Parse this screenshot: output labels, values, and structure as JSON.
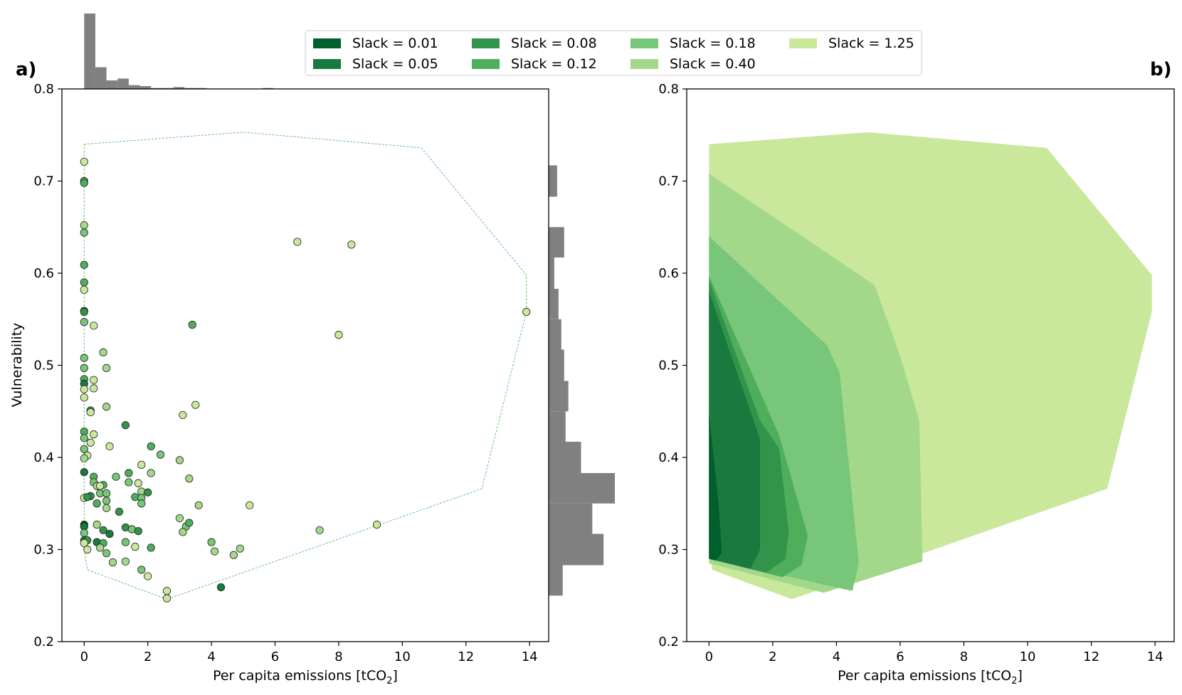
{
  "chart_data": [
    {
      "panel": "a)",
      "type": "scatter",
      "xlabel": "Per capita emissions [tCO",
      "xlabel_sub": "2",
      "xlabel_end": "]",
      "ylabel": "Vulnerability",
      "xlim": [
        -0.7,
        14.6
      ],
      "ylim": [
        0.2,
        0.8
      ],
      "xticks": [
        0,
        2,
        4,
        6,
        8,
        10,
        12,
        14
      ],
      "yticks": [
        0.2,
        0.3,
        0.4,
        0.5,
        0.6,
        0.7,
        0.8
      ],
      "slack_series": [
        "0.01",
        "0.05",
        "0.08",
        "0.12",
        "0.18",
        "0.40",
        "1.25"
      ],
      "points": [
        {
          "x": 0.0,
          "y": 0.721,
          "s": 6
        },
        {
          "x": 0.0,
          "y": 0.7,
          "s": 3
        },
        {
          "x": 0.0,
          "y": 0.698,
          "s": 3
        },
        {
          "x": 0.0,
          "y": 0.652,
          "s": 5
        },
        {
          "x": 0.0,
          "y": 0.644,
          "s": 4
        },
        {
          "x": 0.0,
          "y": 0.609,
          "s": 3
        },
        {
          "x": 0.0,
          "y": 0.59,
          "s": 3
        },
        {
          "x": 0.0,
          "y": 0.582,
          "s": 6
        },
        {
          "x": 0.0,
          "y": 0.559,
          "s": 1
        },
        {
          "x": 0.0,
          "y": 0.558,
          "s": 2
        },
        {
          "x": 0.0,
          "y": 0.547,
          "s": 4
        },
        {
          "x": 0.3,
          "y": 0.543,
          "s": 6
        },
        {
          "x": 0.0,
          "y": 0.508,
          "s": 4
        },
        {
          "x": 0.0,
          "y": 0.497,
          "s": 4
        },
        {
          "x": 0.0,
          "y": 0.485,
          "s": 3
        },
        {
          "x": 0.0,
          "y": 0.48,
          "s": 1
        },
        {
          "x": 0.3,
          "y": 0.484,
          "s": 6
        },
        {
          "x": 0.0,
          "y": 0.474,
          "s": 6
        },
        {
          "x": 0.3,
          "y": 0.475,
          "s": 6
        },
        {
          "x": 0.0,
          "y": 0.465,
          "s": 6
        },
        {
          "x": 0.0,
          "y": 0.428,
          "s": 3
        },
        {
          "x": 0.2,
          "y": 0.451,
          "s": 2
        },
        {
          "x": 0.2,
          "y": 0.449,
          "s": 6
        },
        {
          "x": 0.3,
          "y": 0.425,
          "s": 6
        },
        {
          "x": 0.0,
          "y": 0.421,
          "s": 4
        },
        {
          "x": 0.2,
          "y": 0.416,
          "s": 6
        },
        {
          "x": 0.0,
          "y": 0.409,
          "s": 4
        },
        {
          "x": 0.1,
          "y": 0.402,
          "s": 6
        },
        {
          "x": 0.0,
          "y": 0.399,
          "s": 5
        },
        {
          "x": 0.0,
          "y": 0.384,
          "s": 1
        },
        {
          "x": 0.3,
          "y": 0.379,
          "s": 3
        },
        {
          "x": 0.3,
          "y": 0.373,
          "s": 4
        },
        {
          "x": 0.4,
          "y": 0.369,
          "s": 5
        },
        {
          "x": 0.6,
          "y": 0.37,
          "s": 3
        },
        {
          "x": 0.5,
          "y": 0.369,
          "s": 6
        },
        {
          "x": 0.0,
          "y": 0.356,
          "s": 6
        },
        {
          "x": 0.2,
          "y": 0.358,
          "s": 2
        },
        {
          "x": 0.1,
          "y": 0.357,
          "s": 2
        },
        {
          "x": 0.5,
          "y": 0.361,
          "s": 4
        },
        {
          "x": 0.7,
          "y": 0.361,
          "s": 4
        },
        {
          "x": 0.7,
          "y": 0.353,
          "s": 4
        },
        {
          "x": 0.4,
          "y": 0.35,
          "s": 3
        },
        {
          "x": 0.7,
          "y": 0.345,
          "s": 5
        },
        {
          "x": 0.0,
          "y": 0.327,
          "s": 0
        },
        {
          "x": 0.0,
          "y": 0.325,
          "s": 1
        },
        {
          "x": 0.4,
          "y": 0.327,
          "s": 5
        },
        {
          "x": 0.6,
          "y": 0.321,
          "s": 2
        },
        {
          "x": 0.8,
          "y": 0.317,
          "s": 1
        },
        {
          "x": 0.0,
          "y": 0.318,
          "s": 4
        },
        {
          "x": 0.0,
          "y": 0.31,
          "s": 1
        },
        {
          "x": 0.1,
          "y": 0.31,
          "s": 2
        },
        {
          "x": 0.4,
          "y": 0.308,
          "s": 1
        },
        {
          "x": 0.6,
          "y": 0.307,
          "s": 3
        },
        {
          "x": 0.0,
          "y": 0.307,
          "s": 6
        },
        {
          "x": 0.5,
          "y": 0.302,
          "s": 5
        },
        {
          "x": 0.1,
          "y": 0.3,
          "s": 6
        },
        {
          "x": 0.7,
          "y": 0.296,
          "s": 4
        },
        {
          "x": 0.9,
          "y": 0.286,
          "s": 5
        },
        {
          "x": 1.0,
          "y": 0.379,
          "s": 4
        },
        {
          "x": 0.8,
          "y": 0.412,
          "s": 6
        },
        {
          "x": 0.7,
          "y": 0.455,
          "s": 5
        },
        {
          "x": 0.7,
          "y": 0.497,
          "s": 5
        },
        {
          "x": 0.6,
          "y": 0.514,
          "s": 5
        },
        {
          "x": 1.3,
          "y": 0.435,
          "s": 2
        },
        {
          "x": 1.4,
          "y": 0.383,
          "s": 3
        },
        {
          "x": 1.4,
          "y": 0.373,
          "s": 4
        },
        {
          "x": 1.7,
          "y": 0.372,
          "s": 6
        },
        {
          "x": 1.6,
          "y": 0.357,
          "s": 3
        },
        {
          "x": 1.8,
          "y": 0.363,
          "s": 5
        },
        {
          "x": 1.8,
          "y": 0.356,
          "s": 4
        },
        {
          "x": 1.8,
          "y": 0.35,
          "s": 4
        },
        {
          "x": 1.1,
          "y": 0.341,
          "s": 2
        },
        {
          "x": 1.3,
          "y": 0.324,
          "s": 2
        },
        {
          "x": 1.5,
          "y": 0.322,
          "s": 4
        },
        {
          "x": 1.7,
          "y": 0.32,
          "s": 2
        },
        {
          "x": 1.3,
          "y": 0.308,
          "s": 4
        },
        {
          "x": 1.6,
          "y": 0.303,
          "s": 6
        },
        {
          "x": 1.3,
          "y": 0.287,
          "s": 5
        },
        {
          "x": 1.8,
          "y": 0.278,
          "s": 4
        },
        {
          "x": 2.0,
          "y": 0.271,
          "s": 6
        },
        {
          "x": 1.8,
          "y": 0.392,
          "s": 6
        },
        {
          "x": 2.1,
          "y": 0.412,
          "s": 3
        },
        {
          "x": 2.1,
          "y": 0.383,
          "s": 5
        },
        {
          "x": 2.0,
          "y": 0.362,
          "s": 2
        },
        {
          "x": 2.1,
          "y": 0.302,
          "s": 3
        },
        {
          "x": 2.4,
          "y": 0.403,
          "s": 4
        },
        {
          "x": 3.0,
          "y": 0.397,
          "s": 5
        },
        {
          "x": 3.3,
          "y": 0.377,
          "s": 5
        },
        {
          "x": 3.0,
          "y": 0.334,
          "s": 5
        },
        {
          "x": 3.2,
          "y": 0.325,
          "s": 4
        },
        {
          "x": 3.3,
          "y": 0.329,
          "s": 3
        },
        {
          "x": 3.1,
          "y": 0.319,
          "s": 5
        },
        {
          "x": 3.6,
          "y": 0.348,
          "s": 5
        },
        {
          "x": 3.1,
          "y": 0.446,
          "s": 6
        },
        {
          "x": 3.5,
          "y": 0.457,
          "s": 6
        },
        {
          "x": 3.4,
          "y": 0.544,
          "s": 3
        },
        {
          "x": 2.6,
          "y": 0.255,
          "s": 6
        },
        {
          "x": 2.6,
          "y": 0.247,
          "s": 6
        },
        {
          "x": 4.0,
          "y": 0.308,
          "s": 4
        },
        {
          "x": 4.1,
          "y": 0.298,
          "s": 5
        },
        {
          "x": 4.3,
          "y": 0.259,
          "s": 1
        },
        {
          "x": 4.7,
          "y": 0.294,
          "s": 5
        },
        {
          "x": 4.9,
          "y": 0.301,
          "s": 5
        },
        {
          "x": 5.2,
          "y": 0.348,
          "s": 6
        },
        {
          "x": 6.7,
          "y": 0.634,
          "s": 6
        },
        {
          "x": 7.4,
          "y": 0.321,
          "s": 5
        },
        {
          "x": 8.0,
          "y": 0.533,
          "s": 6
        },
        {
          "x": 8.4,
          "y": 0.631,
          "s": 6
        },
        {
          "x": 9.2,
          "y": 0.327,
          "s": 6
        },
        {
          "x": 13.9,
          "y": 0.558,
          "s": 6
        }
      ],
      "hull": [
        [
          0.0,
          0.74
        ],
        [
          5.0,
          0.753
        ],
        [
          10.6,
          0.736
        ],
        [
          13.9,
          0.598
        ],
        [
          13.9,
          0.558
        ],
        [
          12.5,
          0.366
        ],
        [
          2.6,
          0.246
        ],
        [
          0.1,
          0.278
        ],
        [
          0.0,
          0.3
        ],
        [
          0.0,
          0.74
        ]
      ],
      "hist_x": {
        "range": [
          0,
          7
        ],
        "bins": 20,
        "counts": [
          80,
          23,
          9,
          11,
          4,
          3,
          1,
          1,
          2,
          1,
          1,
          0,
          0,
          0,
          0,
          0,
          1,
          0,
          0,
          0
        ]
      },
      "hist_y": {
        "edges": [
          0.25,
          0.283,
          0.317,
          0.35,
          0.383,
          0.417,
          0.45,
          0.483,
          0.517,
          0.55,
          0.583,
          0.617,
          0.65,
          0.683,
          0.717
        ],
        "counts": [
          10,
          39,
          31,
          47,
          23,
          12,
          14,
          11,
          9,
          7,
          4,
          11,
          0,
          6
        ]
      }
    },
    {
      "panel": "b)",
      "type": "area",
      "xlabel": "Per capita emissions [tCO",
      "xlabel_sub": "2",
      "xlabel_end": "]",
      "xlim": [
        -0.7,
        14.6
      ],
      "ylim": [
        0.2,
        0.8
      ],
      "xticks": [
        0,
        2,
        4,
        6,
        8,
        10,
        12,
        14
      ],
      "yticks": [
        0.2,
        0.3,
        0.4,
        0.5,
        0.6,
        0.7,
        0.8
      ],
      "regions": [
        {
          "slack": "1.25",
          "poly": [
            [
              0.0,
              0.74
            ],
            [
              5.0,
              0.753
            ],
            [
              10.6,
              0.736
            ],
            [
              13.9,
              0.598
            ],
            [
              13.9,
              0.558
            ],
            [
              12.5,
              0.366
            ],
            [
              2.6,
              0.246
            ],
            [
              0.1,
              0.278
            ],
            [
              0.0,
              0.3
            ]
          ]
        },
        {
          "slack": "0.40",
          "poly": [
            [
              0.0,
              0.708
            ],
            [
              5.2,
              0.587
            ],
            [
              6.0,
              0.51
            ],
            [
              6.6,
              0.44
            ],
            [
              6.7,
              0.287
            ],
            [
              3.6,
              0.253
            ],
            [
              0.0,
              0.285
            ]
          ]
        },
        {
          "slack": "0.18",
          "poly": [
            [
              0.0,
              0.64
            ],
            [
              3.7,
              0.522
            ],
            [
              4.1,
              0.492
            ],
            [
              4.7,
              0.285
            ],
            [
              4.5,
              0.255
            ],
            [
              0.0,
              0.29
            ]
          ]
        },
        {
          "slack": "0.12",
          "poly": [
            [
              0.0,
              0.597
            ],
            [
              2.2,
              0.424
            ],
            [
              3.1,
              0.315
            ],
            [
              2.9,
              0.283
            ],
            [
              2.3,
              0.27
            ],
            [
              0.0,
              0.29
            ]
          ]
        },
        {
          "slack": "0.08",
          "poly": [
            [
              0.0,
              0.593
            ],
            [
              1.6,
              0.44
            ],
            [
              2.2,
              0.41
            ],
            [
              2.5,
              0.32
            ],
            [
              2.4,
              0.29
            ],
            [
              1.8,
              0.275
            ],
            [
              0.0,
              0.29
            ]
          ]
        },
        {
          "slack": "0.05",
          "poly": [
            [
              0.0,
              0.58
            ],
            [
              1.0,
              0.48
            ],
            [
              1.6,
              0.42
            ],
            [
              1.6,
              0.3
            ],
            [
              1.3,
              0.279
            ],
            [
              0.0,
              0.29
            ]
          ]
        },
        {
          "slack": "0.01",
          "poly": [
            [
              0.0,
              0.447
            ],
            [
              0.3,
              0.35
            ],
            [
              0.4,
              0.296
            ],
            [
              0.2,
              0.288
            ],
            [
              0.0,
              0.29
            ]
          ]
        }
      ]
    }
  ],
  "legend": {
    "items": [
      {
        "label": "Slack = 0.01",
        "color": "#00602d"
      },
      {
        "label": "Slack = 0.05",
        "color": "#187a3e"
      },
      {
        "label": "Slack = 0.08",
        "color": "#32934a"
      },
      {
        "label": "Slack = 0.12",
        "color": "#4eae5c"
      },
      {
        "label": "Slack = 0.18",
        "color": "#78c679"
      },
      {
        "label": "Slack = 0.40",
        "color": "#a3d88a"
      },
      {
        "label": "Slack = 1.25",
        "color": "#c9e89c"
      }
    ]
  },
  "colors": {
    "hist": "#808080",
    "hull": "#6cbf6e",
    "marker_edge": "#222222"
  }
}
